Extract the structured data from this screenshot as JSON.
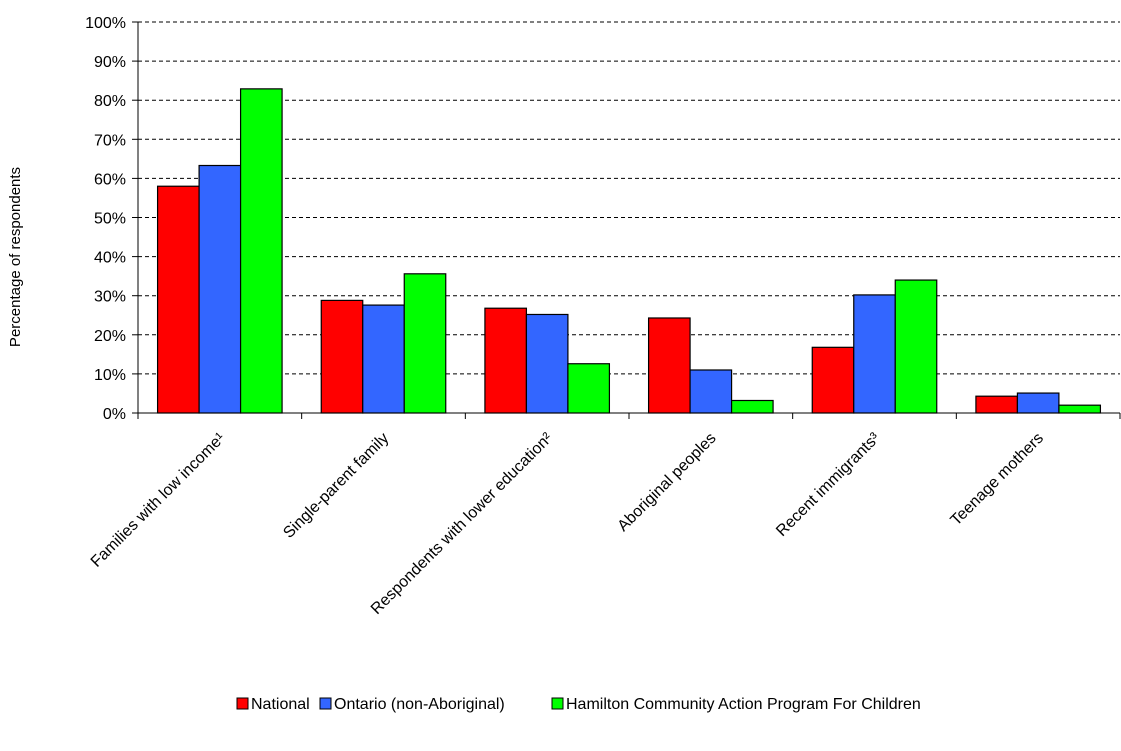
{
  "chart_data": {
    "type": "bar",
    "categories": [
      "Families with low income¹",
      "Single-parent family",
      "Respondents with lower education²",
      "Aboriginal peoples",
      "Recent immigrants³",
      "Teenage mothers"
    ],
    "series": [
      {
        "name": "National",
        "color": "#ff0000",
        "values": [
          58,
          28.8,
          26.8,
          24.3,
          16.8,
          4.3
        ]
      },
      {
        "name": "Ontario (non-Aboriginal)",
        "color": "#3366ff",
        "values": [
          63.3,
          27.6,
          25.2,
          11,
          30.2,
          5.1
        ]
      },
      {
        "name": "Hamilton Community Action Program For Children",
        "color": "#00ff00",
        "values": [
          82.9,
          35.6,
          12.6,
          3.2,
          34,
          2
        ]
      }
    ],
    "ylabel": "Percentage of respondents",
    "ylim": [
      0,
      100
    ],
    "yticks": [
      "0%",
      "10%",
      "20%",
      "30%",
      "40%",
      "50%",
      "60%",
      "70%",
      "80%",
      "90%",
      "100%"
    ],
    "grid": true,
    "grid_style": "dashed",
    "legend_position": "bottom"
  }
}
